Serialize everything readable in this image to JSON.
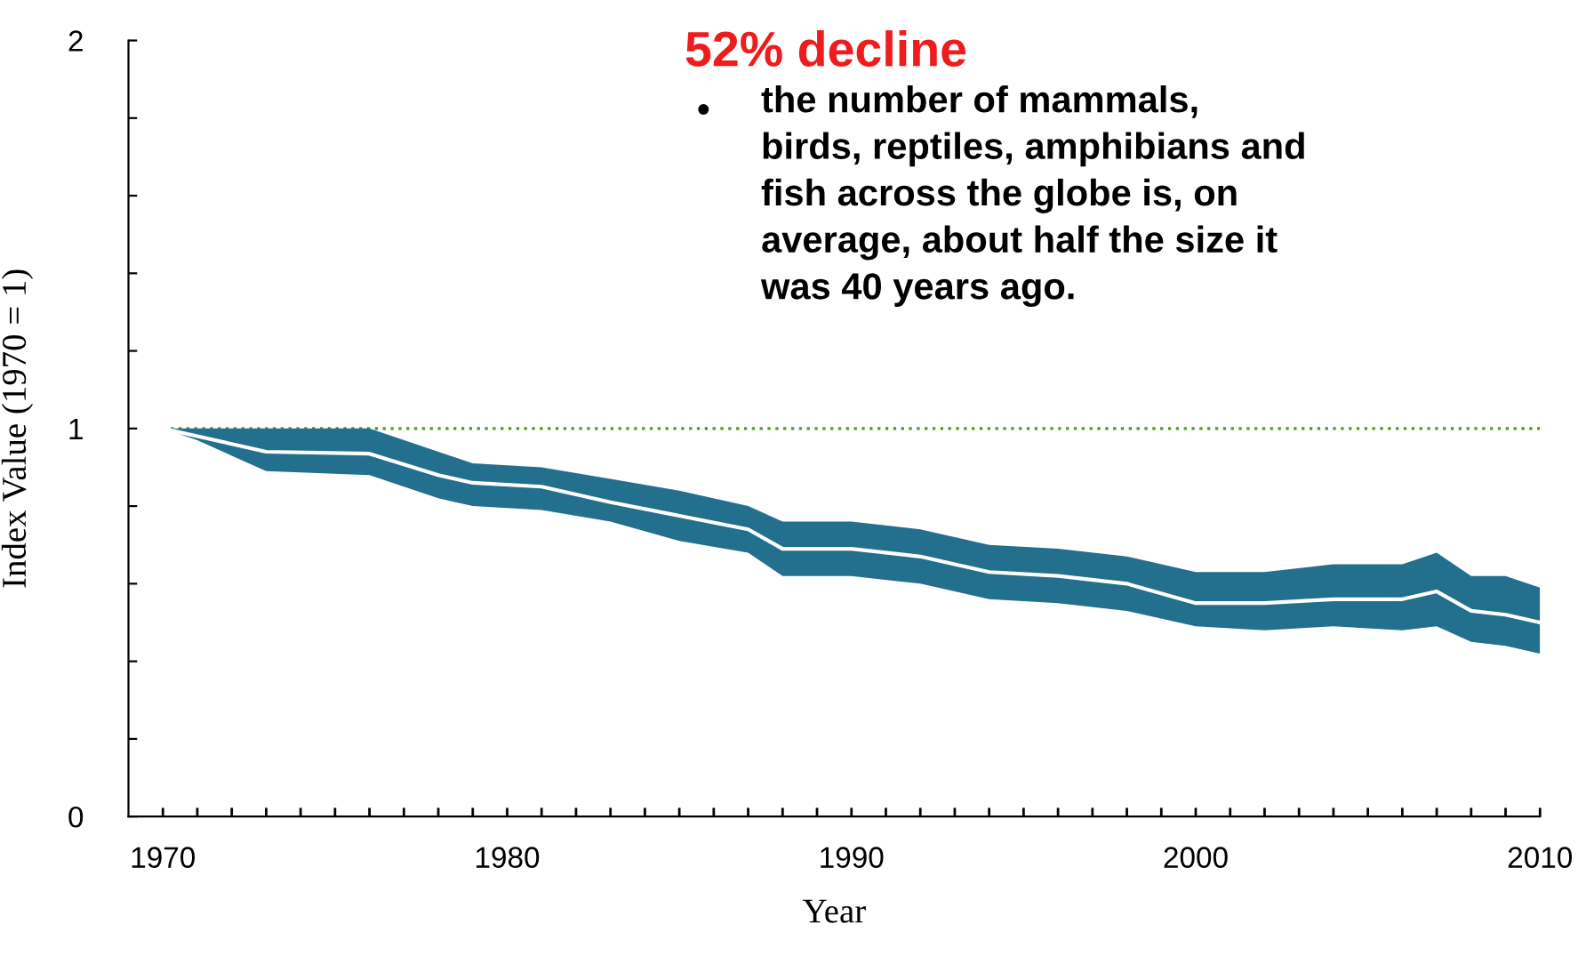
{
  "chart_data": {
    "type": "line",
    "xlabel": "Year",
    "ylabel": "Index Value (1970 = 1)",
    "annotations": [
      "52% decline",
      "•",
      "the number of mammals,\nbirds, reptiles, amphibians and\nfish across the globe is, on\naverage, about half the size it\nwas 40 years ago."
    ],
    "x": [
      1970,
      1971,
      1972,
      1973,
      1976,
      1978,
      1979,
      1981,
      1983,
      1985,
      1987,
      1988,
      1990,
      1992,
      1994,
      1996,
      1998,
      2000,
      2002,
      2004,
      2006,
      2007,
      2008,
      2009,
      2010
    ],
    "series": [
      {
        "color": "#ffffff",
        "values": [
          1.0,
          0.98,
          0.96,
          0.94,
          0.935,
          0.88,
          0.86,
          0.85,
          0.81,
          0.775,
          0.74,
          0.69,
          0.69,
          0.67,
          0.63,
          0.62,
          0.6,
          0.55,
          0.55,
          0.56,
          0.56,
          0.58,
          0.53,
          0.52,
          0.5
        ],
        "lower": [
          1.0,
          0.97,
          0.93,
          0.89,
          0.88,
          0.82,
          0.8,
          0.79,
          0.76,
          0.71,
          0.68,
          0.62,
          0.62,
          0.6,
          0.56,
          0.55,
          0.53,
          0.49,
          0.48,
          0.49,
          0.48,
          0.49,
          0.45,
          0.44,
          0.42
        ],
        "upper": [
          1.0,
          1.0,
          1.0,
          1.0,
          1.0,
          0.94,
          0.91,
          0.9,
          0.87,
          0.84,
          0.8,
          0.76,
          0.76,
          0.74,
          0.7,
          0.69,
          0.67,
          0.63,
          0.63,
          0.65,
          0.65,
          0.68,
          0.62,
          0.62,
          0.59
        ]
      }
    ],
    "ref_lines": [
      {
        "axis": "y",
        "value": 1,
        "color": "#4c9a2a",
        "line_style": "dotted"
      }
    ],
    "xlim": [
      1969,
      2010
    ],
    "xticks": [
      1970,
      {
        "value": 1971,
        "label": null
      },
      {
        "value": 1972,
        "label": null
      },
      {
        "value": 1973,
        "label": null
      },
      {
        "value": 1974,
        "label": null
      },
      {
        "value": 1975,
        "label": null
      },
      {
        "value": 1976,
        "label": null
      },
      {
        "value": 1977,
        "label": null
      },
      {
        "value": 1978,
        "label": null
      },
      {
        "value": 1979,
        "label": null
      },
      1980,
      {
        "value": 1981,
        "label": null
      },
      {
        "value": 1982,
        "label": null
      },
      {
        "value": 1983,
        "label": null
      },
      {
        "value": 1984,
        "label": null
      },
      {
        "value": 1985,
        "label": null
      },
      {
        "value": 1986,
        "label": null
      },
      {
        "value": 1987,
        "label": null
      },
      {
        "value": 1988,
        "label": null
      },
      {
        "value": 1989,
        "label": null
      },
      1990,
      {
        "value": 1991,
        "label": null
      },
      {
        "value": 1992,
        "label": null
      },
      {
        "value": 1993,
        "label": null
      },
      {
        "value": 1994,
        "label": null
      },
      {
        "value": 1995,
        "label": null
      },
      {
        "value": 1996,
        "label": null
      },
      {
        "value": 1997,
        "label": null
      },
      {
        "value": 1998,
        "label": null
      },
      {
        "value": 1999,
        "label": null
      },
      2000,
      {
        "value": 2001,
        "label": null
      },
      {
        "value": 2002,
        "label": null
      },
      {
        "value": 2003,
        "label": null
      },
      {
        "value": 2004,
        "label": null
      },
      {
        "value": 2005,
        "label": null
      },
      {
        "value": 2006,
        "label": null
      },
      {
        "value": 2007,
        "label": null
      },
      {
        "value": 2008,
        "label": null
      },
      {
        "value": 2009,
        "label": null
      },
      2010
    ],
    "ylim": [
      0,
      2
    ],
    "yticks": [
      0,
      {
        "value": 0.2,
        "label": null
      },
      {
        "value": 0.4,
        "label": null
      },
      {
        "value": 0.6,
        "label": null
      },
      {
        "value": 0.8,
        "label": null
      },
      1,
      {
        "value": 1.2,
        "label": null
      },
      {
        "value": 1.4,
        "label": null
      },
      {
        "value": 1.6,
        "label": null
      },
      {
        "value": 1.8,
        "label": null
      },
      2
    ],
    "grid": false,
    "legend": false,
    "marker": "none",
    "line_style": "solid"
  }
}
